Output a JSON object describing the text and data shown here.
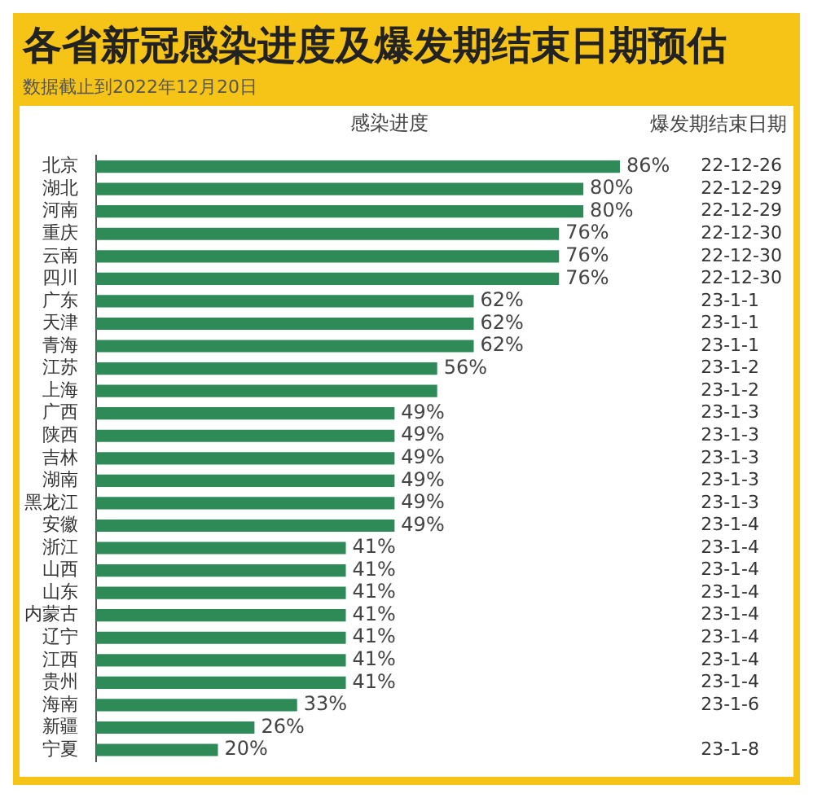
{
  "chart_data": {
    "type": "bar",
    "orientation": "horizontal",
    "title": "各省新冠感染进度及爆发期结束日期预估",
    "subtitle": "数据截止到2022年12月20日",
    "xlabel": "感染进度",
    "annotations": [
      "爆发期结束日期"
    ],
    "categories": [
      "北京",
      "湖北",
      "河南",
      "重庆",
      "云南",
      "四川",
      "广东",
      "天津",
      "青海",
      "江苏",
      "上海",
      "广西",
      "陕西",
      "吉林",
      "湖南",
      "黑龙江",
      "安徽",
      "浙江",
      "山西",
      "山东",
      "内蒙古",
      "辽宁",
      "江西",
      "贵州",
      "海南",
      "新疆",
      "宁夏"
    ],
    "y2_categories": [
      "22-12-26",
      "22-12-29",
      "22-12-29",
      "22-12-30",
      "22-12-30",
      "22-12-30",
      "23-1-1",
      "23-1-1",
      "23-1-1",
      "23-1-2",
      "23-1-2",
      "23-1-3",
      "23-1-3",
      "23-1-3",
      "23-1-3",
      "23-1-3",
      "23-1-4",
      "23-1-4",
      "23-1-4",
      "23-1-4",
      "23-1-4",
      "23-1-4",
      "23-1-4",
      "23-1-4",
      "23-1-6",
      null,
      "23-1-8"
    ],
    "values": [
      86,
      80,
      80,
      76,
      76,
      76,
      62,
      62,
      62,
      56,
      56,
      49,
      49,
      49,
      49,
      49,
      49,
      41,
      41,
      41,
      41,
      41,
      41,
      41,
      33,
      26,
      20
    ],
    "value_labels": [
      "86%",
      "80%",
      "80%",
      "76%",
      "76%",
      "76%",
      "62%",
      "62%",
      "62%",
      "56%",
      null,
      "49%",
      "49%",
      "49%",
      "49%",
      "49%",
      "49%",
      "41%",
      "41%",
      "41%",
      "41%",
      "41%",
      "41%",
      "41%",
      "33%",
      "26%",
      "20%"
    ],
    "color": "#2e8b57",
    "grid": false,
    "legend": false
  }
}
